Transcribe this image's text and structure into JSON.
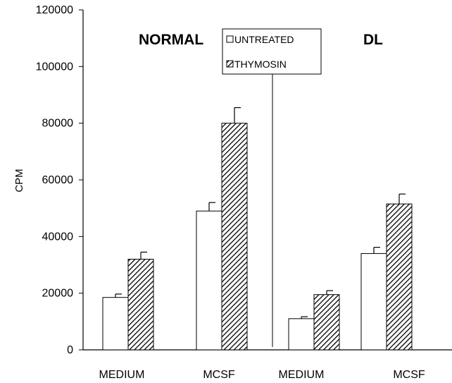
{
  "colors": {
    "untreated_fill": "#ffffff",
    "thymosin_hatch": "#000000",
    "axis": "#000000"
  },
  "chart_data": {
    "type": "bar",
    "ylabel": "CPM",
    "ylim": [
      0,
      120000
    ],
    "yticks": [
      0,
      20000,
      40000,
      60000,
      80000,
      100000,
      120000
    ],
    "ytick_labels": [
      "0",
      "20000",
      "40000",
      "60000",
      "80000",
      "100000",
      "120000"
    ],
    "grid": false,
    "legend_position": "top-center",
    "groups": [
      "NORMAL",
      "DL"
    ],
    "categories": [
      "MEDIUM",
      "MCSF",
      "MEDIUM",
      "MCSF"
    ],
    "series": [
      {
        "name": "UNTREATED",
        "pattern": "solid-white",
        "values": [
          18500,
          49000,
          11000,
          34000
        ],
        "errors": [
          1200,
          3000,
          700,
          2200
        ]
      },
      {
        "name": "THYMOSIN",
        "pattern": "diagonal-hatch",
        "values": [
          32000,
          80000,
          19500,
          51500
        ],
        "errors": [
          2500,
          5500,
          1400,
          3500
        ]
      }
    ]
  }
}
